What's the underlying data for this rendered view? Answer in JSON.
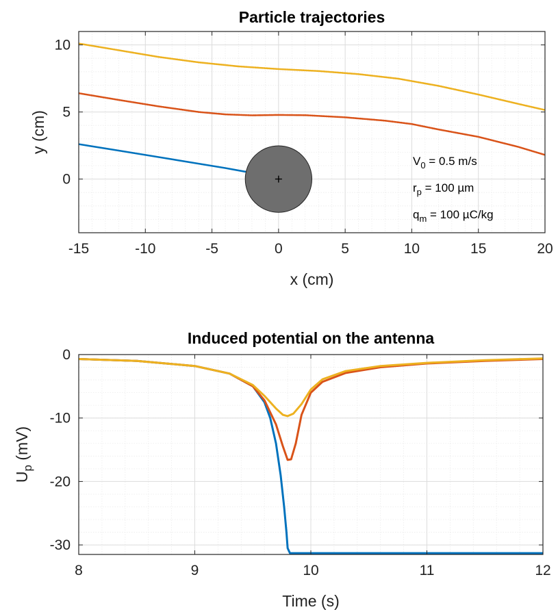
{
  "chart_data": [
    {
      "type": "line",
      "title": "Particle trajectories",
      "xlabel": "x (cm)",
      "ylabel": "y (cm)",
      "xlim": [
        -15,
        20
      ],
      "ylim": [
        -4,
        11
      ],
      "xticks": [
        -15,
        -10,
        -5,
        0,
        5,
        10,
        15,
        20
      ],
      "yticks": [
        0,
        5,
        10
      ],
      "grid": true,
      "minor_grid": true,
      "colors": {
        "grid": "#e6e6e6",
        "axis": "#262626"
      },
      "series": [
        {
          "color": "#0072BD",
          "points": [
            [
              -15,
              2.6
            ],
            [
              -12,
              2.12
            ],
            [
              -9,
              1.64
            ],
            [
              -6,
              1.15
            ],
            [
              -4,
              0.82
            ],
            [
              -2.5,
              0.55
            ]
          ]
        },
        {
          "color": "#D95319",
          "points": [
            [
              -15,
              6.4
            ],
            [
              -12,
              5.9
            ],
            [
              -9,
              5.42
            ],
            [
              -6,
              5.0
            ],
            [
              -4,
              4.82
            ],
            [
              -2,
              4.75
            ],
            [
              0,
              4.78
            ],
            [
              2,
              4.76
            ],
            [
              5,
              4.6
            ],
            [
              8,
              4.35
            ],
            [
              10,
              4.1
            ],
            [
              12,
              3.7
            ],
            [
              15,
              3.15
            ],
            [
              18,
              2.4
            ],
            [
              20,
              1.8
            ]
          ]
        },
        {
          "color": "#EDB120",
          "points": [
            [
              -15,
              10.1
            ],
            [
              -12,
              9.6
            ],
            [
              -9,
              9.1
            ],
            [
              -6,
              8.7
            ],
            [
              -3,
              8.4
            ],
            [
              0,
              8.2
            ],
            [
              3,
              8.05
            ],
            [
              6,
              7.82
            ],
            [
              9,
              7.48
            ],
            [
              12,
              6.95
            ],
            [
              15,
              6.3
            ],
            [
              18,
              5.6
            ],
            [
              20,
              5.15
            ]
          ]
        }
      ],
      "obstacle": {
        "center": [
          0,
          0
        ],
        "radius": 2.5,
        "fill": "#6e6e6e",
        "marker": "+"
      },
      "annotations": {
        "v0_base": "V",
        "v0_sub": "0",
        "v0_rest": " = 0.5 m/s",
        "rp_base": "r",
        "rp_sub": "p",
        "rp_rest": " = 100 µm",
        "qm_base": "q",
        "qm_sub": "m",
        "qm_rest": " = 100 µC/kg"
      }
    },
    {
      "type": "line",
      "title": "Induced potential on the antenna",
      "xlabel": "Time (s)",
      "ylabel_base": "U",
      "ylabel_sub": "p",
      "ylabel_rest": " (mV)",
      "xlim": [
        8,
        12
      ],
      "ylim": [
        -31.5,
        0
      ],
      "xticks": [
        8,
        9,
        10,
        11,
        12
      ],
      "yticks": [
        0,
        -10,
        -20,
        -30
      ],
      "grid": true,
      "minor_grid": true,
      "series": [
        {
          "color": "#0072BD",
          "points": [
            [
              8,
              -0.7
            ],
            [
              8.5,
              -1.0
            ],
            [
              9,
              -1.8
            ],
            [
              9.3,
              -3.0
            ],
            [
              9.5,
              -5.0
            ],
            [
              9.6,
              -7.5
            ],
            [
              9.65,
              -10
            ],
            [
              9.7,
              -14
            ],
            [
              9.74,
              -19
            ],
            [
              9.77,
              -24
            ],
            [
              9.79,
              -28
            ],
            [
              9.8,
              -30.5
            ],
            [
              9.82,
              -31.3
            ],
            [
              10,
              -31.3
            ],
            [
              11,
              -31.3
            ],
            [
              12,
              -31.3
            ]
          ]
        },
        {
          "color": "#D95319",
          "points": [
            [
              8,
              -0.7
            ],
            [
              8.5,
              -1.0
            ],
            [
              9,
              -1.8
            ],
            [
              9.3,
              -3.0
            ],
            [
              9.5,
              -5.0
            ],
            [
              9.6,
              -7.2
            ],
            [
              9.7,
              -11
            ],
            [
              9.76,
              -14.5
            ],
            [
              9.8,
              -16.6
            ],
            [
              9.83,
              -16.5
            ],
            [
              9.87,
              -14
            ],
            [
              9.92,
              -9.5
            ],
            [
              10,
              -6.0
            ],
            [
              10.1,
              -4.3
            ],
            [
              10.3,
              -2.9
            ],
            [
              10.6,
              -2.0
            ],
            [
              11,
              -1.4
            ],
            [
              11.5,
              -1.0
            ],
            [
              12,
              -0.7
            ]
          ]
        },
        {
          "color": "#EDB120",
          "points": [
            [
              8,
              -0.7
            ],
            [
              8.5,
              -1.0
            ],
            [
              9,
              -1.8
            ],
            [
              9.3,
              -3.0
            ],
            [
              9.5,
              -4.8
            ],
            [
              9.6,
              -6.5
            ],
            [
              9.7,
              -8.5
            ],
            [
              9.76,
              -9.5
            ],
            [
              9.8,
              -9.7
            ],
            [
              9.85,
              -9.3
            ],
            [
              9.92,
              -7.8
            ],
            [
              10,
              -5.5
            ],
            [
              10.1,
              -3.9
            ],
            [
              10.3,
              -2.6
            ],
            [
              10.6,
              -1.8
            ],
            [
              11,
              -1.3
            ],
            [
              11.5,
              -0.9
            ],
            [
              12,
              -0.6
            ]
          ]
        }
      ]
    }
  ]
}
